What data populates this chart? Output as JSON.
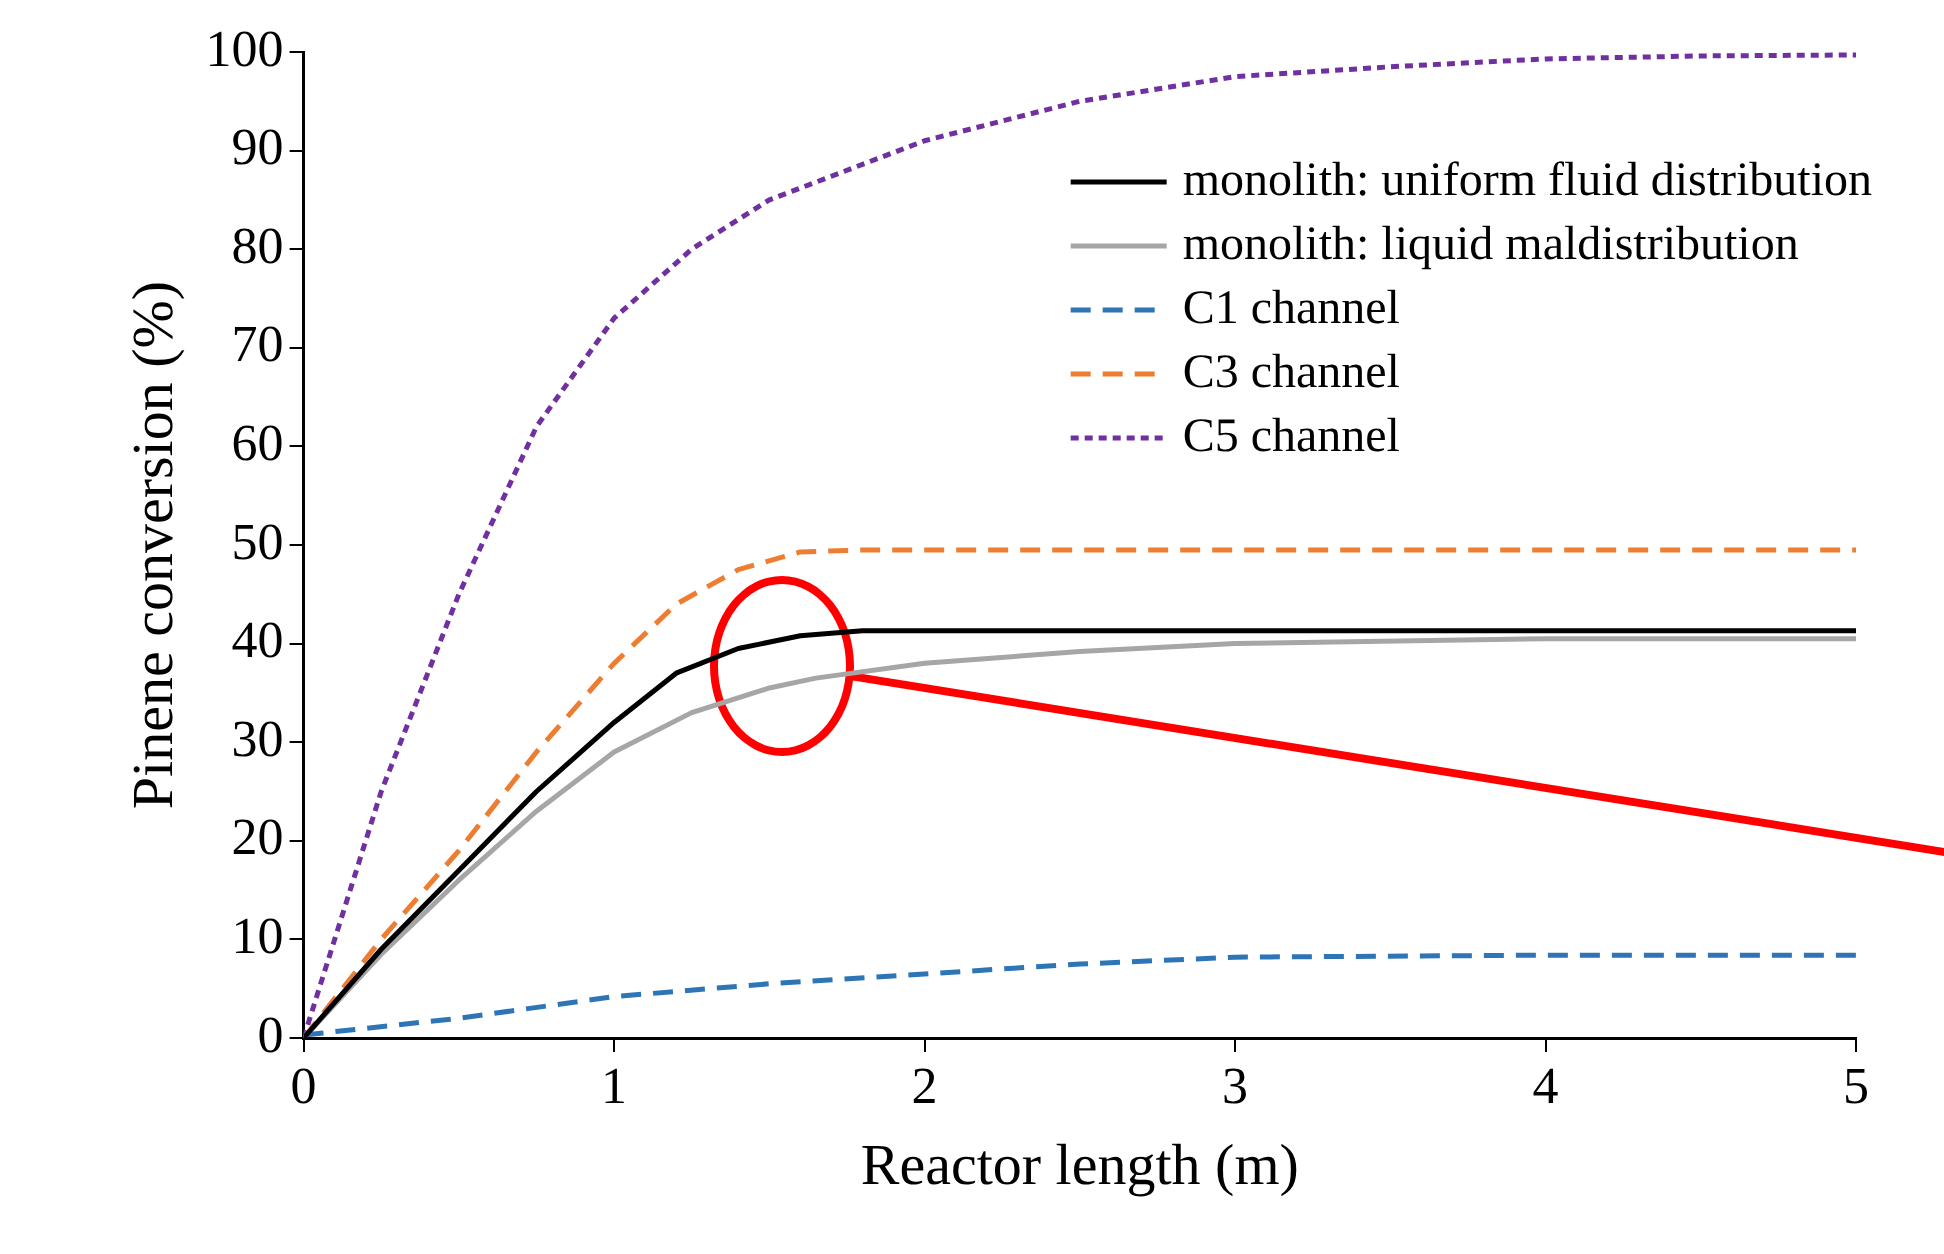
{
  "chart_data": {
    "type": "line",
    "xlabel": "Reactor length (m)",
    "ylabel": "Pinene conversion (%)",
    "xlim": [
      0,
      5
    ],
    "ylim": [
      0,
      100
    ],
    "xticks": [
      0,
      1,
      2,
      3,
      4,
      5
    ],
    "yticks": [
      0,
      10,
      20,
      30,
      40,
      50,
      60,
      70,
      80,
      90,
      100
    ],
    "grid": false,
    "legend": "top right",
    "marker": "none",
    "series": [
      {
        "name": "monolith: uniform fluid distribution",
        "color": "#000000",
        "line_style": "solid",
        "x": [
          0,
          0.25,
          0.5,
          0.75,
          1,
          1.2,
          1.4,
          1.6,
          1.8,
          2,
          3,
          4,
          5
        ],
        "values": [
          0,
          9,
          17,
          25,
          32,
          37,
          39.5,
          40.8,
          41.3,
          41.3,
          41.3,
          41.3,
          41.3
        ]
      },
      {
        "name": "monolith: liquid maldistribution",
        "color": "#a6a6a6",
        "line_style": "solid",
        "x": [
          0,
          0.25,
          0.5,
          0.75,
          1,
          1.25,
          1.5,
          1.65,
          2,
          2.5,
          3,
          4,
          5
        ],
        "values": [
          0,
          8.5,
          16,
          23,
          29,
          33,
          35.5,
          36.5,
          38,
          39.2,
          40,
          40.5,
          40.5
        ]
      },
      {
        "name": "C1 channel",
        "color": "#2e75b6",
        "line_style": "dashed",
        "x": [
          0,
          0.5,
          1,
          1.5,
          2,
          2.5,
          3,
          4,
          5
        ],
        "values": [
          0.3,
          2,
          4.2,
          5.5,
          6.5,
          7.5,
          8.2,
          8.4,
          8.4
        ]
      },
      {
        "name": "C3 channel",
        "color": "#ed7d31",
        "line_style": "dashed",
        "x": [
          0,
          0.25,
          0.5,
          0.75,
          1,
          1.2,
          1.4,
          1.6,
          1.8,
          3,
          5
        ],
        "values": [
          0,
          10,
          19,
          29,
          38,
          44,
          47.5,
          49.3,
          49.5,
          49.5,
          49.5
        ]
      },
      {
        "name": "C5 channel",
        "color": "#7030a0",
        "line_style": "dotted",
        "x": [
          0,
          0.1,
          0.25,
          0.5,
          0.75,
          1,
          1.25,
          1.5,
          2,
          2.5,
          3,
          3.5,
          4,
          4.5,
          5
        ],
        "values": [
          0,
          10,
          25,
          45,
          62,
          73,
          80,
          85,
          91,
          95,
          97.5,
          98.5,
          99.3,
          99.6,
          99.7
        ]
      }
    ]
  }
}
